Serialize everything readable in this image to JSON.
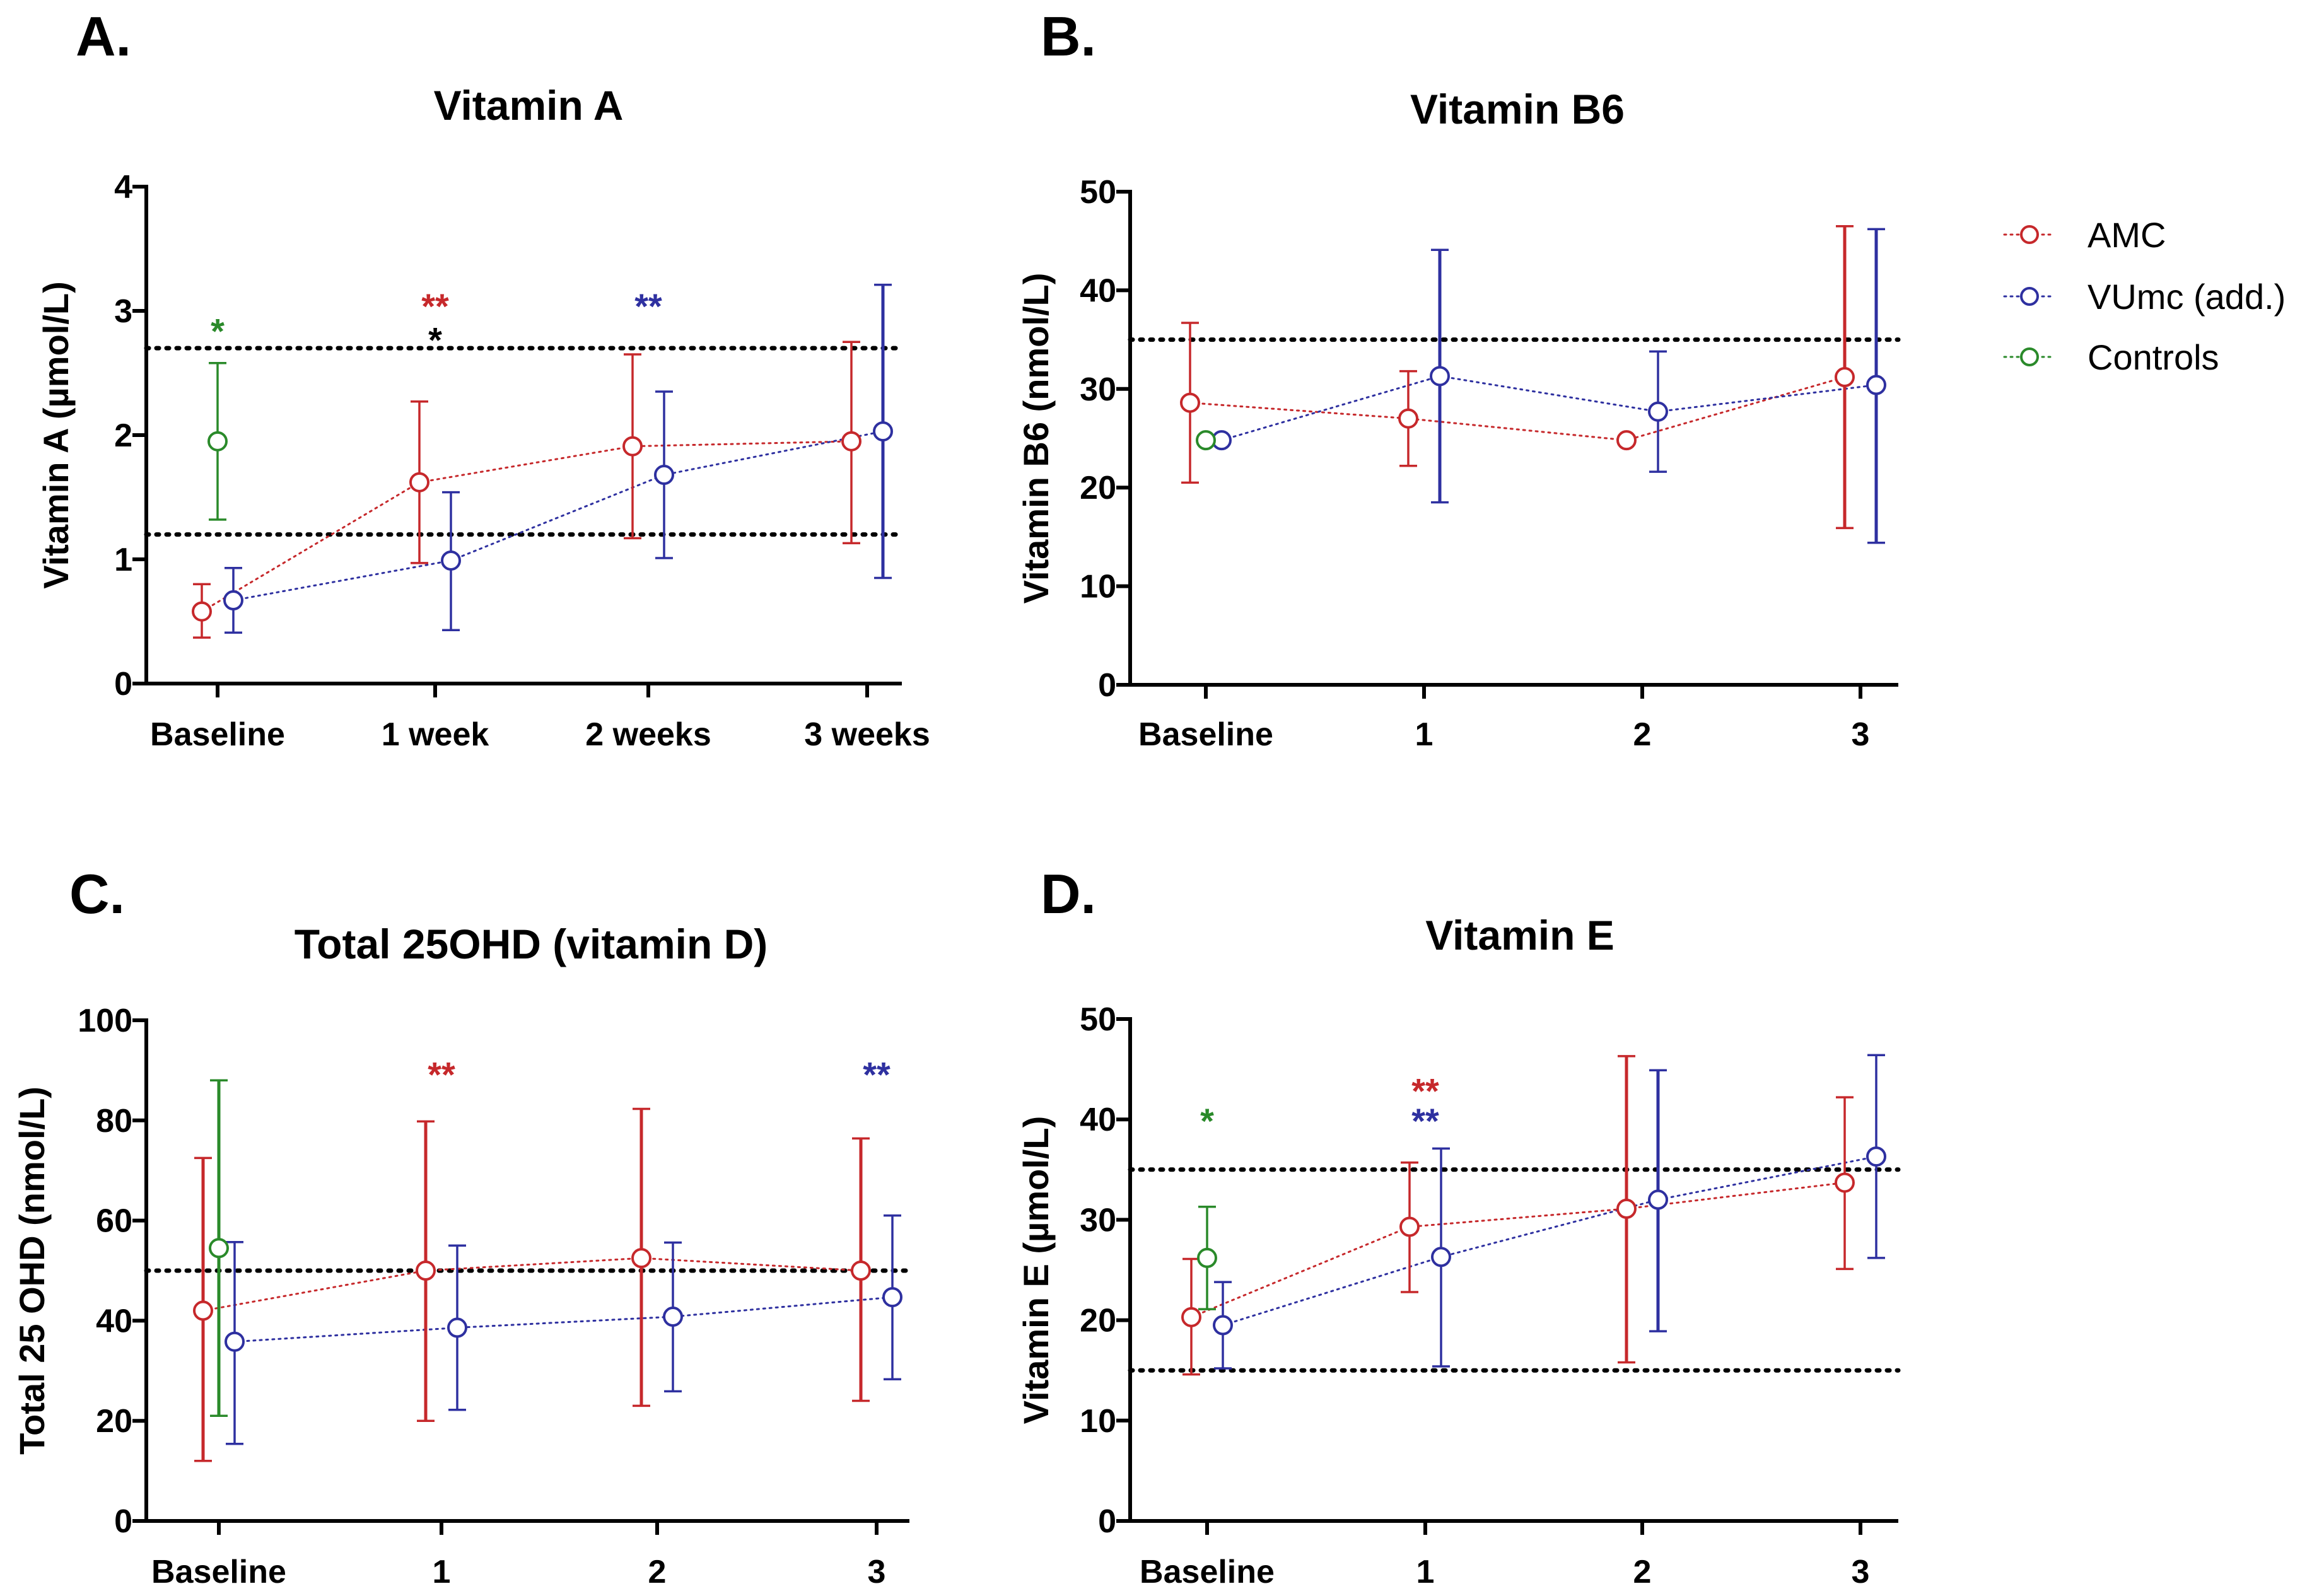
{
  "colors": {
    "AMC": "#c6282b",
    "VUmc": "#2e30a0",
    "Controls": "#2a8a2a",
    "black": "#000000"
  },
  "legend": [
    {
      "key": "AMC",
      "label": "AMC"
    },
    {
      "key": "VUmc",
      "label": "VUmc (add.)"
    },
    {
      "key": "Controls",
      "label": "Controls"
    }
  ],
  "chart_data": [
    {
      "type": "scatter",
      "panel": "A.",
      "title": "Vitamin A",
      "ylabel": "Vitamin A (µmol/L)",
      "ylim": [
        0,
        4
      ],
      "yticks": [
        0,
        1,
        2,
        3,
        4
      ],
      "categories": [
        "Baseline",
        "1 week",
        "2 weeks",
        "3 weeks"
      ],
      "reference_lines": [
        1.2,
        2.7
      ],
      "series": [
        {
          "name": "AMC",
          "color_key": "AMC",
          "values": [
            0.58,
            1.62,
            1.91,
            1.95
          ],
          "err_low": [
            0.37,
            0.97,
            1.17,
            1.13
          ],
          "err_high": [
            0.8,
            2.27,
            2.65,
            2.75
          ]
        },
        {
          "name": "VUmc (add.)",
          "color_key": "VUmc",
          "values": [
            0.67,
            0.99,
            1.68,
            2.03
          ],
          "err_low": [
            0.41,
            0.43,
            1.01,
            0.85
          ],
          "err_high": [
            0.93,
            1.54,
            2.35,
            3.21
          ]
        },
        {
          "name": "Controls",
          "color_key": "Controls",
          "values": [
            1.95,
            null,
            null,
            null
          ],
          "err_low": [
            1.32,
            null,
            null,
            null
          ],
          "err_high": [
            2.58,
            null,
            null,
            null
          ]
        }
      ],
      "annotations": [
        {
          "text": "*",
          "color_key": "Controls",
          "category": 0,
          "y": 2.85
        },
        {
          "text": "**",
          "color_key": "AMC",
          "category": 1,
          "y": 3.05
        },
        {
          "text": "*",
          "color_key": "black",
          "category": 1,
          "y": 2.78
        },
        {
          "text": "**",
          "color_key": "VUmc",
          "category": 2,
          "y": 3.05
        }
      ]
    },
    {
      "type": "scatter",
      "panel": "B.",
      "title": "Vitamin B6",
      "ylabel": "Vitamin B6 (nmol/L)",
      "ylim": [
        0,
        50
      ],
      "yticks": [
        0,
        10,
        20,
        30,
        40,
        50
      ],
      "categories": [
        "Baseline",
        "1",
        "2",
        "3"
      ],
      "reference_lines": [
        35
      ],
      "series": [
        {
          "name": "AMC",
          "color_key": "AMC",
          "values": [
            28.6,
            27.0,
            24.8,
            31.2
          ],
          "err_low": [
            20.5,
            22.2,
            null,
            15.9
          ],
          "err_high": [
            36.7,
            31.8,
            null,
            46.5
          ]
        },
        {
          "name": "VUmc (add.)",
          "color_key": "VUmc",
          "values": [
            24.8,
            31.3,
            27.7,
            30.4
          ],
          "err_low": [
            null,
            18.5,
            21.6,
            14.4
          ],
          "err_high": [
            null,
            44.1,
            33.8,
            46.2
          ]
        },
        {
          "name": "Controls",
          "color_key": "Controls",
          "values": [
            24.8,
            null,
            null,
            null
          ],
          "err_low": [
            null,
            null,
            null,
            null
          ],
          "err_high": [
            null,
            null,
            null,
            null
          ]
        }
      ],
      "annotations": []
    },
    {
      "type": "scatter",
      "panel": "C.",
      "title": "Total 25OHD (vitamin D)",
      "ylabel": "Total 25 OHD (nmol/L)",
      "ylim": [
        0,
        100
      ],
      "yticks": [
        0,
        20,
        40,
        60,
        80,
        100
      ],
      "categories": [
        "Baseline",
        "1",
        "2",
        "3"
      ],
      "reference_lines": [
        50
      ],
      "series": [
        {
          "name": "AMC",
          "color_key": "AMC",
          "values": [
            42.0,
            50.0,
            52.5,
            50.0
          ],
          "err_low": [
            12.0,
            20.0,
            23.0,
            24.0
          ],
          "err_high": [
            72.5,
            79.8,
            82.3,
            76.4
          ]
        },
        {
          "name": "VUmc (add.)",
          "color_key": "VUmc",
          "values": [
            35.8,
            38.6,
            40.8,
            44.7
          ],
          "err_low": [
            15.4,
            22.2,
            25.9,
            28.3
          ],
          "err_high": [
            55.7,
            55.0,
            55.6,
            61.0
          ]
        },
        {
          "name": "Controls",
          "color_key": "Controls",
          "values": [
            54.5,
            null,
            null,
            null
          ],
          "err_low": [
            21.0,
            null,
            null,
            null
          ],
          "err_high": [
            88.0,
            null,
            null,
            null
          ]
        }
      ],
      "annotations": [
        {
          "text": "**",
          "color_key": "AMC",
          "category": 1,
          "y": 89.5
        },
        {
          "text": "**",
          "color_key": "VUmc",
          "category": 3,
          "y": 89.5
        }
      ]
    },
    {
      "type": "scatter",
      "panel": "D.",
      "title": "Vitamin E",
      "ylabel": "Vitamin E (µmol/L)",
      "ylim": [
        0,
        50
      ],
      "yticks": [
        0,
        10,
        20,
        30,
        40,
        50
      ],
      "categories": [
        "Baseline",
        "1",
        "2",
        "3"
      ],
      "reference_lines": [
        15,
        35
      ],
      "series": [
        {
          "name": "AMC",
          "color_key": "AMC",
          "values": [
            20.3,
            29.3,
            31.1,
            33.7
          ],
          "err_low": [
            14.6,
            22.8,
            15.8,
            25.1
          ],
          "err_high": [
            26.1,
            35.7,
            46.3,
            42.2
          ]
        },
        {
          "name": "VUmc (add.)",
          "color_key": "VUmc",
          "values": [
            19.5,
            26.3,
            32.0,
            36.3
          ],
          "err_low": [
            15.2,
            15.4,
            18.9,
            26.2
          ],
          "err_high": [
            23.8,
            37.1,
            44.9,
            46.4
          ]
        },
        {
          "name": "Controls",
          "color_key": "Controls",
          "values": [
            26.2,
            null,
            null,
            null
          ],
          "err_low": [
            21.1,
            null,
            null,
            null
          ],
          "err_high": [
            31.3,
            null,
            null,
            null
          ]
        }
      ],
      "annotations": [
        {
          "text": "*",
          "color_key": "Controls",
          "category": 0,
          "y": 40.0
        },
        {
          "text": "**",
          "color_key": "AMC",
          "category": 1,
          "y": 43.0
        },
        {
          "text": "**",
          "color_key": "VUmc",
          "category": 1,
          "y": 40.0
        }
      ]
    }
  ]
}
